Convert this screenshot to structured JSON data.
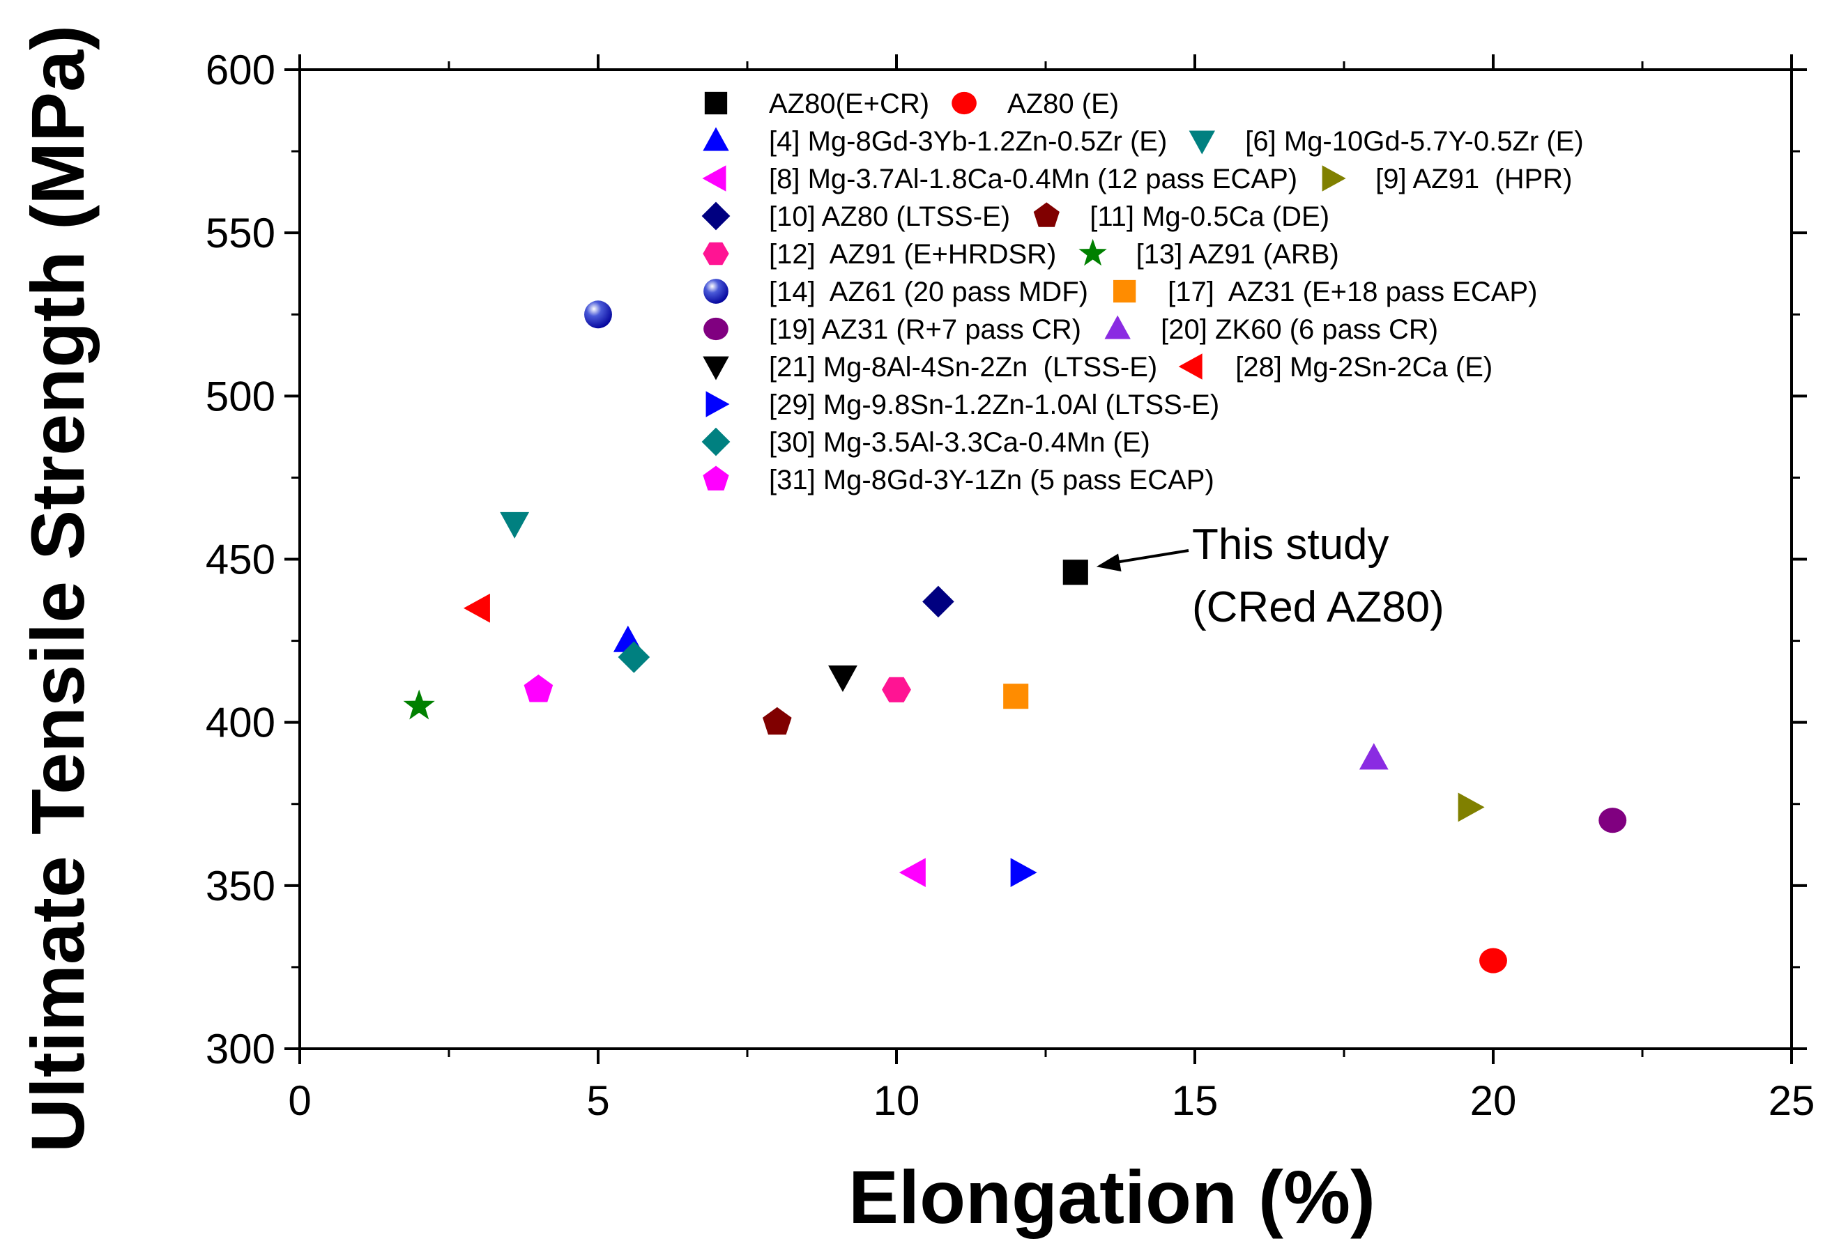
{
  "chart_data": {
    "type": "scatter",
    "title": "",
    "xlabel": "Elongation (%)",
    "ylabel": "Ultimate Tensile Strength (MPa)",
    "xlim": [
      0,
      25
    ],
    "ylim": [
      300,
      600
    ],
    "xticks": [
      0,
      5,
      10,
      15,
      20,
      25
    ],
    "yticks": [
      300,
      350,
      400,
      450,
      500,
      550,
      600
    ],
    "grid": false,
    "legend_position": "top-right",
    "series": [
      {
        "name": "AZ80(E+CR)",
        "marker": "square",
        "color": "#000000",
        "points": [
          [
            13.0,
            446
          ]
        ]
      },
      {
        "name": "AZ80 (E)",
        "marker": "circle",
        "color": "#ff0000",
        "points": [
          [
            20.0,
            327
          ]
        ]
      },
      {
        "name": "[4] Mg-8Gd-3Yb-1.2Zn-0.5Zr (E)",
        "marker": "triangle-up",
        "color": "#0000ff",
        "points": [
          [
            5.5,
            425
          ]
        ]
      },
      {
        "name": "[6] Mg-10Gd-5.7Y-0.5Zr (E)",
        "marker": "triangle-down",
        "color": "#008080",
        "points": [
          [
            3.6,
            461
          ]
        ]
      },
      {
        "name": "[8] Mg-3.7Al-1.8Ca-0.4Mn (12 pass ECAP)",
        "marker": "triangle-left",
        "color": "#ff00ff",
        "points": [
          [
            10.3,
            354
          ]
        ]
      },
      {
        "name": "[9] AZ91  (HPR)",
        "marker": "triangle-right",
        "color": "#808000",
        "points": [
          [
            19.6,
            374
          ]
        ]
      },
      {
        "name": "[10] AZ80 (LTSS-E)",
        "marker": "diamond",
        "color": "#000080",
        "points": [
          [
            10.7,
            437
          ]
        ]
      },
      {
        "name": "[11] Mg-0.5Ca (DE)",
        "marker": "pentagon",
        "color": "#800000",
        "points": [
          [
            8.0,
            400
          ]
        ]
      },
      {
        "name": "[12]  AZ91 (E+HRDSR)",
        "marker": "hexagon",
        "color": "#ff1493",
        "points": [
          [
            10.0,
            410
          ]
        ]
      },
      {
        "name": "[13] AZ91 (ARB)",
        "marker": "star",
        "color": "#008000",
        "points": [
          [
            2.0,
            405
          ]
        ]
      },
      {
        "name": "[14]  AZ61 (20 pass MDF)",
        "marker": "sphere",
        "color": "#000099",
        "points": [
          [
            5.0,
            525
          ]
        ]
      },
      {
        "name": "[17]  AZ31 (E+18 pass ECAP)",
        "marker": "square",
        "color": "#ff8c00",
        "points": [
          [
            12.0,
            408
          ]
        ]
      },
      {
        "name": "[19] AZ31 (R+7 pass CR)",
        "marker": "circle",
        "color": "#800080",
        "points": [
          [
            22.0,
            370
          ]
        ]
      },
      {
        "name": "[20] ZK60 (6 pass CR)",
        "marker": "triangle-up",
        "color": "#8a2be2",
        "points": [
          [
            18.0,
            389
          ]
        ]
      },
      {
        "name": "[21] Mg-8Al-4Sn-2Zn  (LTSS-E)",
        "marker": "triangle-down",
        "color": "#000000",
        "points": [
          [
            9.1,
            414
          ]
        ]
      },
      {
        "name": "[28] Mg-2Sn-2Ca (E)",
        "marker": "triangle-left",
        "color": "#ff0000",
        "points": [
          [
            3.0,
            435
          ]
        ]
      },
      {
        "name": "[29] Mg-9.8Sn-1.2Zn-1.0Al (LTSS-E)",
        "marker": "triangle-right",
        "color": "#0000ff",
        "points": [
          [
            12.1,
            354
          ]
        ]
      },
      {
        "name": "[30] Mg-3.5Al-3.3Ca-0.4Mn (E)",
        "marker": "diamond",
        "color": "#008080",
        "points": [
          [
            5.6,
            420
          ]
        ]
      },
      {
        "name": "[31] Mg-8Gd-3Y-1Zn (5 pass ECAP)",
        "marker": "pentagon",
        "color": "#ff00ff",
        "points": [
          [
            4.0,
            410
          ]
        ]
      }
    ],
    "annotation": {
      "lines": [
        "This study",
        "(CRed AZ80)"
      ],
      "points_to": [
        13.0,
        446
      ]
    }
  }
}
